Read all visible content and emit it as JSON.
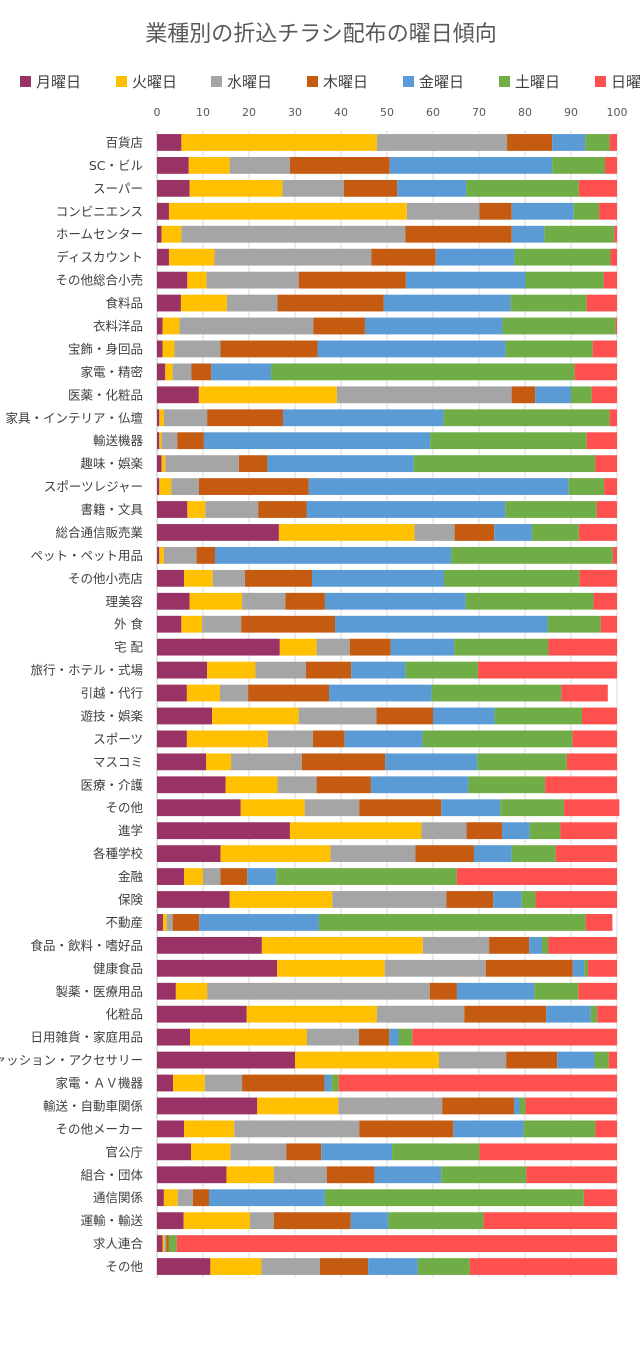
{
  "chart_data": {
    "type": "bar",
    "orientation": "horizontal",
    "stacked": true,
    "title": "業種別の折込チラシ配布の曜日傾向",
    "xlim": [
      0,
      100
    ],
    "xticks": [
      0,
      10,
      20,
      30,
      40,
      50,
      60,
      70,
      80,
      90,
      100
    ],
    "grid": true,
    "legend_position": "top",
    "categories": [
      "百貨店",
      "SC・ビル",
      "スーパー",
      "コンビニエンス",
      "ホームセンター",
      "ディスカウント",
      "その他総合小売",
      "食料品",
      "衣料洋品",
      "宝飾・身回品",
      "家電・精密",
      "医薬・化粧品",
      "家具・インテリア・仏壇",
      "輸送機器",
      "趣味・娯楽",
      "スポーツレジャー",
      "書籍・文具",
      "総合通信販売業",
      "ペット・ペット用品",
      "その他小売店",
      "理美容",
      "外 食",
      "宅 配",
      "旅行・ホテル・式場",
      "引越・代行",
      "遊技・娯楽",
      "スポーツ",
      "マスコミ",
      "医療・介護",
      "その他",
      "進学",
      "各種学校",
      "金融",
      "保険",
      "不動産",
      "食品・飲料・嗜好品",
      "健康食品",
      "製薬・医療用品",
      "化粧品",
      "日用雑貨・家庭用品",
      "ファッション・アクセサリー",
      "家電・ＡＶ機器",
      "輸送・自動車関係",
      "その他メーカー",
      "官公庁",
      "組合・団体",
      "通信関係",
      "運輸・輸送",
      "求人連合",
      "その他"
    ],
    "series": [
      {
        "name": "月曜日",
        "color": "#993366",
        "values": [
          5.3,
          6.9,
          7.1,
          2.6,
          1.0,
          2.6,
          6.6,
          5.2,
          1.2,
          1.2,
          1.8,
          9.1,
          0.5,
          0.5,
          1.0,
          0.5,
          6.6,
          26.5,
          0.5,
          5.9,
          7.1,
          5.3,
          26.7,
          10.9,
          6.5,
          12.0,
          6.5,
          10.7,
          14.9,
          18.2,
          28.9,
          13.8,
          5.9,
          15.8,
          1.3,
          22.8,
          26.1,
          4.1,
          19.5,
          7.2,
          30.0,
          3.5,
          21.8,
          5.9,
          7.4,
          15.1,
          1.5,
          5.8,
          1.2,
          11.6
        ]
      },
      {
        "name": "火曜日",
        "color": "#FFC000",
        "values": [
          42.5,
          8.9,
          20.2,
          51.7,
          4.3,
          9.9,
          4.2,
          10.0,
          3.7,
          2.6,
          1.6,
          30.0,
          1.0,
          0.5,
          0.8,
          2.6,
          3.9,
          29.5,
          1.0,
          6.2,
          11.4,
          4.5,
          8.0,
          10.5,
          7.2,
          18.8,
          17.6,
          5.4,
          11.3,
          13.9,
          28.6,
          23.9,
          4.1,
          22.3,
          0.8,
          35.0,
          23.4,
          6.8,
          28.3,
          25.4,
          31.3,
          6.9,
          17.6,
          10.9,
          8.6,
          10.3,
          3.0,
          14.4,
          0.4,
          11.1
        ]
      },
      {
        "name": "水曜日",
        "color": "#A5A5A5",
        "values": [
          28.3,
          13.1,
          13.3,
          15.8,
          48.7,
          34.1,
          20.0,
          11.0,
          29.1,
          10.0,
          4.1,
          38.0,
          9.4,
          3.4,
          16.0,
          6.0,
          11.5,
          8.7,
          7.1,
          7.0,
          9.4,
          8.5,
          7.2,
          11.0,
          6.1,
          16.9,
          9.8,
          15.4,
          8.5,
          11.9,
          9.8,
          18.5,
          3.8,
          24.8,
          1.3,
          14.4,
          22.0,
          48.4,
          19.0,
          11.3,
          14.6,
          8.1,
          22.6,
          27.2,
          12.1,
          11.5,
          3.3,
          5.2,
          0.4,
          12.7
        ]
      },
      {
        "name": "木曜日",
        "color": "#C55A11",
        "values": [
          9.8,
          21.7,
          11.6,
          7.0,
          23.1,
          14.0,
          23.3,
          23.1,
          11.2,
          21.1,
          4.3,
          5.1,
          16.5,
          5.8,
          6.2,
          23.9,
          10.5,
          8.6,
          4.0,
          14.6,
          8.6,
          20.4,
          8.9,
          9.8,
          17.6,
          12.3,
          6.9,
          18.1,
          11.8,
          17.8,
          7.7,
          12.7,
          5.8,
          10.2,
          5.8,
          8.7,
          18.9,
          5.9,
          17.8,
          6.6,
          11.1,
          17.9,
          15.6,
          20.4,
          7.6,
          10.4,
          3.5,
          16.7,
          0.5,
          10.5
        ]
      },
      {
        "name": "金曜日",
        "color": "#5B9BD5",
        "values": [
          7.2,
          35.3,
          15.0,
          13.5,
          7.1,
          17.1,
          26.0,
          27.6,
          29.9,
          40.9,
          13.0,
          7.8,
          34.9,
          49.2,
          31.8,
          56.5,
          43.2,
          8.2,
          51.4,
          28.7,
          30.6,
          46.2,
          13.8,
          11.8,
          22.3,
          13.4,
          16.9,
          20.0,
          21.2,
          12.8,
          6.0,
          8.2,
          6.3,
          6.2,
          26.0,
          2.8,
          2.5,
          16.8,
          9.7,
          2.0,
          8.1,
          1.5,
          1.2,
          15.3,
          15.4,
          14.5,
          25.2,
          8.2,
          0.0,
          10.8
        ]
      },
      {
        "name": "土曜日",
        "color": "#70AD47",
        "values": [
          5.3,
          11.5,
          24.5,
          5.5,
          15.2,
          20.9,
          17.0,
          16.5,
          24.6,
          18.9,
          66.0,
          4.5,
          36.1,
          34.0,
          39.5,
          7.7,
          19.9,
          10.2,
          35.1,
          29.5,
          27.8,
          11.6,
          20.5,
          15.8,
          28.2,
          19.0,
          32.6,
          19.5,
          16.7,
          13.9,
          6.7,
          9.6,
          39.3,
          3.0,
          58.0,
          1.4,
          0.8,
          9.6,
          1.4,
          3.0,
          3.1,
          1.6,
          1.3,
          15.6,
          19.0,
          18.5,
          56.3,
          20.7,
          1.8,
          11.3
        ]
      },
      {
        "name": "日曜日",
        "color": "#FF5050",
        "values": [
          1.6,
          2.6,
          8.3,
          3.9,
          0.6,
          1.4,
          2.9,
          6.6,
          0.3,
          5.3,
          9.2,
          5.5,
          1.6,
          6.6,
          4.7,
          2.8,
          4.4,
          8.3,
          0.9,
          8.1,
          5.1,
          3.5,
          14.9,
          30.2,
          10.1,
          7.6,
          9.7,
          10.9,
          15.6,
          12.0,
          12.3,
          13.3,
          34.8,
          17.7,
          5.8,
          14.9,
          6.3,
          8.4,
          4.3,
          44.5,
          1.8,
          60.5,
          19.9,
          4.7,
          29.9,
          19.7,
          7.2,
          29.0,
          95.7,
          32.0
        ]
      }
    ]
  }
}
